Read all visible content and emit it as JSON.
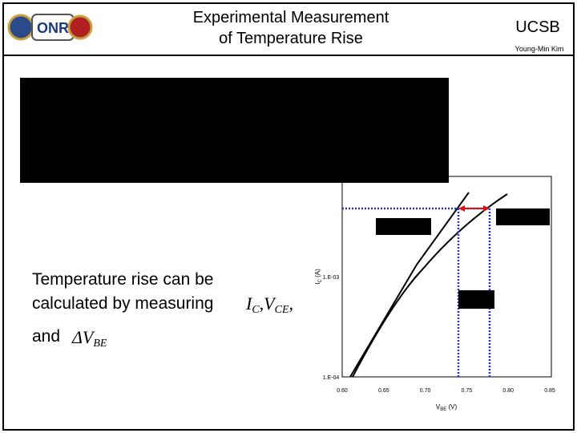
{
  "header": {
    "title": [
      "Experimental Measurement",
      "of Temperature Rise"
    ],
    "affiliation": "UCSB",
    "author": "Young-Min Kim"
  },
  "body": {
    "lines": [
      "Temperature rise can be",
      "calculated by measuring",
      "and"
    ],
    "measured": [
      {
        "base": "I",
        "sub": "C"
      },
      {
        "base": ",V",
        "sub": "CE"
      },
      {
        "base": ","
      }
    ],
    "delta": {
      "base": "ΔV",
      "sub": "BE"
    }
  },
  "figure": {
    "y_label": {
      "base": "I",
      "sub": "C",
      "unit": " (A)"
    },
    "x_label": {
      "base": "V",
      "sub": "BE",
      "unit": " (V)"
    },
    "y_ticks": [
      "1.E-03",
      "1.E-04"
    ],
    "x_ticks": [
      "0.60",
      "0.65",
      "0.70",
      "0.75",
      "0.80",
      "0.85"
    ]
  }
}
